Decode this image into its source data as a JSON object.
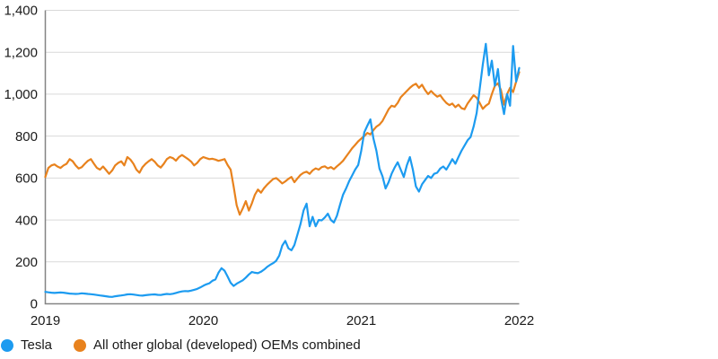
{
  "chart_data": {
    "type": "line",
    "x_axis": {
      "tick_labels": [
        "2019",
        "2020",
        "2021",
        "2022"
      ],
      "range_years": [
        2019,
        2022
      ]
    },
    "y_axis": {
      "ticks": [
        {
          "value": 0,
          "label": "0"
        },
        {
          "value": 200,
          "label": "200"
        },
        {
          "value": 400,
          "label": "400"
        },
        {
          "value": 600,
          "label": "600"
        },
        {
          "value": 800,
          "label": "800"
        },
        {
          "value": 1000,
          "label": "1,000"
        },
        {
          "value": 1200,
          "label": "1,200"
        },
        {
          "value": 1400,
          "label": "1,400"
        }
      ],
      "ylim": [
        0,
        1400
      ]
    },
    "grid": "horizontal",
    "legend_position": "bottom-left",
    "series": [
      {
        "name": "Tesla",
        "color": "#1c9bf0",
        "values": [
          57,
          55,
          53,
          52,
          53,
          54,
          53,
          51,
          49,
          48,
          47,
          48,
          50,
          49,
          47,
          46,
          44,
          42,
          40,
          38,
          36,
          34,
          33,
          36,
          38,
          40,
          42,
          45,
          46,
          44,
          42,
          40,
          39,
          41,
          43,
          44,
          45,
          43,
          42,
          45,
          47,
          46,
          48,
          52,
          56,
          59,
          61,
          60,
          63,
          67,
          71,
          78,
          86,
          93,
          98,
          110,
          116,
          148,
          170,
          158,
          130,
          100,
          85,
          96,
          104,
          112,
          125,
          140,
          152,
          148,
          146,
          153,
          163,
          176,
          186,
          194,
          205,
          230,
          278,
          300,
          265,
          255,
          280,
          330,
          380,
          445,
          478,
          370,
          415,
          370,
          400,
          398,
          412,
          430,
          400,
          388,
          420,
          472,
          520,
          550,
          585,
          612,
          640,
          662,
          730,
          818,
          850,
          880,
          790,
          730,
          645,
          608,
          550,
          580,
          620,
          650,
          675,
          640,
          605,
          660,
          700,
          640,
          560,
          535,
          570,
          590,
          610,
          600,
          620,
          625,
          645,
          655,
          640,
          665,
          690,
          668,
          700,
          730,
          755,
          780,
          795,
          845,
          910,
          1025,
          1140,
          1240,
          1090,
          1160,
          1040,
          1120,
          980,
          905,
          1000,
          945,
          1230,
          1060,
          1125
        ]
      },
      {
        "name": "All other global (developed) OEMs combined",
        "color": "#e8821d",
        "values": [
          605,
          648,
          660,
          665,
          655,
          648,
          660,
          668,
          690,
          680,
          660,
          645,
          652,
          668,
          682,
          690,
          668,
          648,
          640,
          655,
          638,
          620,
          636,
          660,
          672,
          680,
          660,
          700,
          688,
          668,
          640,
          625,
          652,
          668,
          680,
          690,
          678,
          660,
          650,
          668,
          690,
          700,
          695,
          683,
          700,
          710,
          700,
          690,
          678,
          660,
          672,
          690,
          700,
          695,
          690,
          692,
          688,
          682,
          686,
          690,
          662,
          640,
          560,
          470,
          425,
          455,
          490,
          445,
          480,
          520,
          545,
          530,
          552,
          568,
          582,
          595,
          600,
          588,
          574,
          584,
          596,
          605,
          580,
          598,
          615,
          625,
          630,
          620,
          636,
          646,
          640,
          652,
          656,
          646,
          652,
          642,
          656,
          668,
          682,
          702,
          722,
          742,
          758,
          775,
          788,
          800,
          815,
          808,
          828,
          845,
          855,
          872,
          900,
          928,
          945,
          940,
          958,
          985,
          1000,
          1015,
          1030,
          1042,
          1050,
          1030,
          1045,
          1020,
          1000,
          1015,
          1000,
          988,
          995,
          975,
          958,
          948,
          955,
          938,
          950,
          933,
          928,
          955,
          975,
          995,
          983,
          958,
          930,
          945,
          955,
          1000,
          1040,
          1052,
          1020,
          950,
          1000,
          1030,
          1010,
          1060,
          1105
        ]
      }
    ],
    "colors": {
      "grid": "#d9d9d9",
      "axis": "#848484",
      "text": "#1a1a1a"
    }
  }
}
